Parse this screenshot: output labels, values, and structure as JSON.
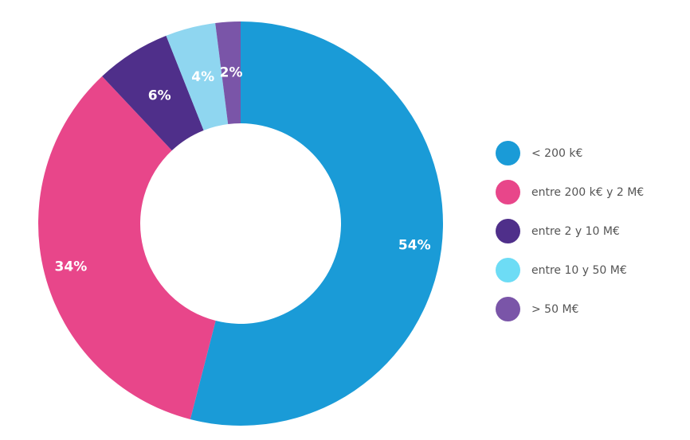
{
  "chart_data": {
    "type": "pie",
    "variant": "donut",
    "categories": [
      "< 200  k€",
      "entre 200 k€ y 2 M€",
      "entre 2 y 10 M€",
      "entre 10 y 50 M€",
      "> 50 M€"
    ],
    "values": [
      54,
      34,
      6,
      4,
      2
    ],
    "value_labels": [
      "54%",
      "34%",
      "6%",
      "4%",
      "2%"
    ],
    "colors": [
      "#1a9bd7",
      "#e8468a",
      "#4f2f8a",
      "#8fd6f0",
      "#7a55a8"
    ],
    "legend_colors": [
      "#1a9bd7",
      "#e8468a",
      "#4f2f8a",
      "#6ddcf5",
      "#7a55a8"
    ],
    "legend_position": "right",
    "title": ""
  }
}
